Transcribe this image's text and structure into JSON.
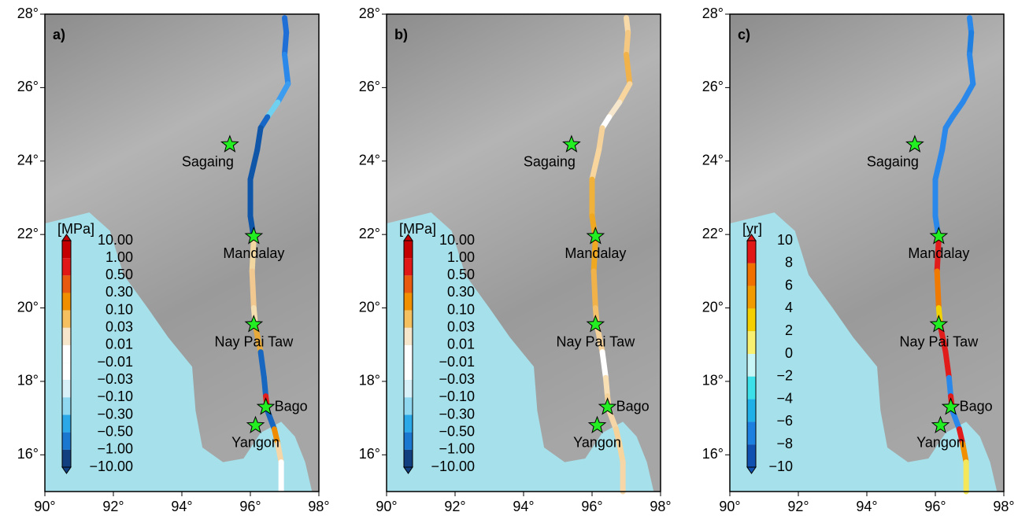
{
  "panels": [
    {
      "label": "a)",
      "unit": "[MPa]",
      "colorbar_labels": [
        "10.00",
        "1.00",
        "0.50",
        "0.30",
        "0.10",
        "0.03",
        "0.01",
        "−0.01",
        "−0.03",
        "−0.10",
        "−0.30",
        "−0.50",
        "−1.00",
        "−10.00"
      ]
    },
    {
      "label": "b)",
      "unit": "[MPa]",
      "colorbar_labels": [
        "10.00",
        "1.00",
        "0.50",
        "0.30",
        "0.10",
        "0.03",
        "0.01",
        "−0.01",
        "−0.03",
        "−0.10",
        "−0.30",
        "−0.50",
        "−1.00",
        "−10.00"
      ]
    },
    {
      "label": "c)",
      "unit": "[yr]",
      "colorbar_labels": [
        "10",
        "8",
        "6",
        "4",
        "2",
        "0",
        "−2",
        "−4",
        "−6",
        "−8",
        "−10"
      ]
    }
  ],
  "x_tick_labels": [
    "90°",
    "92°",
    "94°",
    "96°",
    "98°"
  ],
  "y_tick_labels": [
    "16°",
    "18°",
    "20°",
    "22°",
    "24°",
    "26°",
    "28°"
  ],
  "cities": [
    "Sagaing",
    "Mandalay",
    "Nay Pai Taw",
    "Bago",
    "Yangon"
  ]
}
